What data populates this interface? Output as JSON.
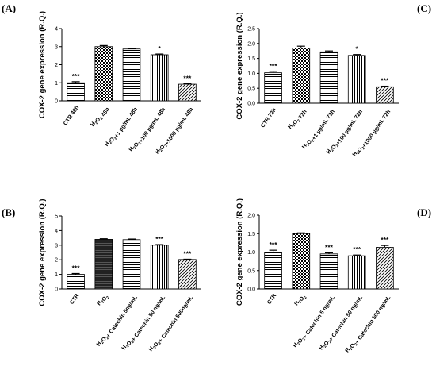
{
  "figure": {
    "panel_labels": [
      "(A)",
      "(C)",
      "(B)",
      "(D)"
    ]
  },
  "patterns": {
    "checker": "checker-pattern",
    "hatch": "horizontal-hatch-pattern",
    "vertical": "vertical-lines-pattern",
    "diagonal": "diagonal-hatch-pattern",
    "solid": "solid-fill"
  },
  "chart_data": [
    {
      "type": "bar",
      "panel": "(A)",
      "ylabel": "COX-2 gene expression (R.Q.)",
      "ylim": [
        0,
        4
      ],
      "yticks": [
        0,
        1,
        2,
        3,
        4
      ],
      "categories": [
        "CTR 48h",
        "H₂O₂ 48h",
        "H₂O₂+1 µg/mL 48h",
        "H₂O₂+100 µg/mL 48h",
        "H₂O₂+1000 µg/mL 48h"
      ],
      "values": [
        1.0,
        3.0,
        2.87,
        2.55,
        0.92
      ],
      "errors": [
        0.06,
        0.06,
        0.03,
        0.04,
        0.03
      ],
      "significance": [
        "***",
        "",
        "",
        "*",
        "***"
      ],
      "fills": [
        "hatch",
        "checker",
        "hatch",
        "vertical",
        "diagonal"
      ]
    },
    {
      "type": "bar",
      "panel": "(C)",
      "ylabel": "COX-2 gene expression (R.Q.)",
      "ylim": [
        0,
        2.5
      ],
      "yticks": [
        "0.0",
        "0.5",
        "1.0",
        "1.5",
        "2.0",
        "2.5"
      ],
      "categories": [
        "CTR 72h",
        "H₂O₂ 72h",
        "H₂O₂+1 µg/mL 72h",
        "H₂O₂+100 µg/mL 72h",
        "H₂O₂+1000 µg/mL 72h"
      ],
      "values": [
        1.02,
        1.85,
        1.72,
        1.6,
        0.55
      ],
      "errors": [
        0.05,
        0.06,
        0.03,
        0.03,
        0.02
      ],
      "significance": [
        "***",
        "",
        "",
        "*",
        "***"
      ],
      "fills": [
        "hatch",
        "checker",
        "hatch",
        "vertical",
        "diagonal"
      ]
    },
    {
      "type": "bar",
      "panel": "(B)",
      "ylabel": "COX-2 gene expression (R.Q.)",
      "ylim": [
        0,
        5
      ],
      "yticks": [
        0,
        1,
        2,
        3,
        4,
        5
      ],
      "categories": [
        "CTR",
        "H₂O₂",
        "H₂O₂+ Catechin 5ng/mL",
        "H₂O₂+ Catechin 50 ng/mL",
        "H₂O₂+ Catechin 500ng/mL"
      ],
      "values": [
        1.0,
        3.4,
        3.38,
        3.0,
        2.02
      ],
      "errors": [
        0.06,
        0.04,
        0.04,
        0.04,
        0.02
      ],
      "significance": [
        "***",
        "",
        "",
        "***",
        "***"
      ],
      "fills": [
        "hatch",
        "solid",
        "hatch",
        "vertical",
        "diagonal"
      ]
    },
    {
      "type": "bar",
      "panel": "(D)",
      "ylabel": "COX-2 gene expression (R.Q.)",
      "ylim": [
        0,
        2.0
      ],
      "yticks": [
        "0.0",
        "0.5",
        "1.0",
        "1.5",
        "2.0"
      ],
      "categories": [
        "CTR",
        "H₂O₂",
        "H₂O₂+ Catechin 5 ng/mL",
        "H₂O₂+ Catechin 50 ng/mL",
        "H₂O₂+ Catechin 500 ng/mL"
      ],
      "values": [
        1.0,
        1.5,
        0.95,
        0.9,
        1.13
      ],
      "errors": [
        0.05,
        0.02,
        0.03,
        0.02,
        0.05
      ],
      "significance": [
        "***",
        "",
        "***",
        "***",
        "***"
      ],
      "fills": [
        "hatch",
        "checker",
        "hatch",
        "vertical",
        "diagonal"
      ]
    }
  ]
}
